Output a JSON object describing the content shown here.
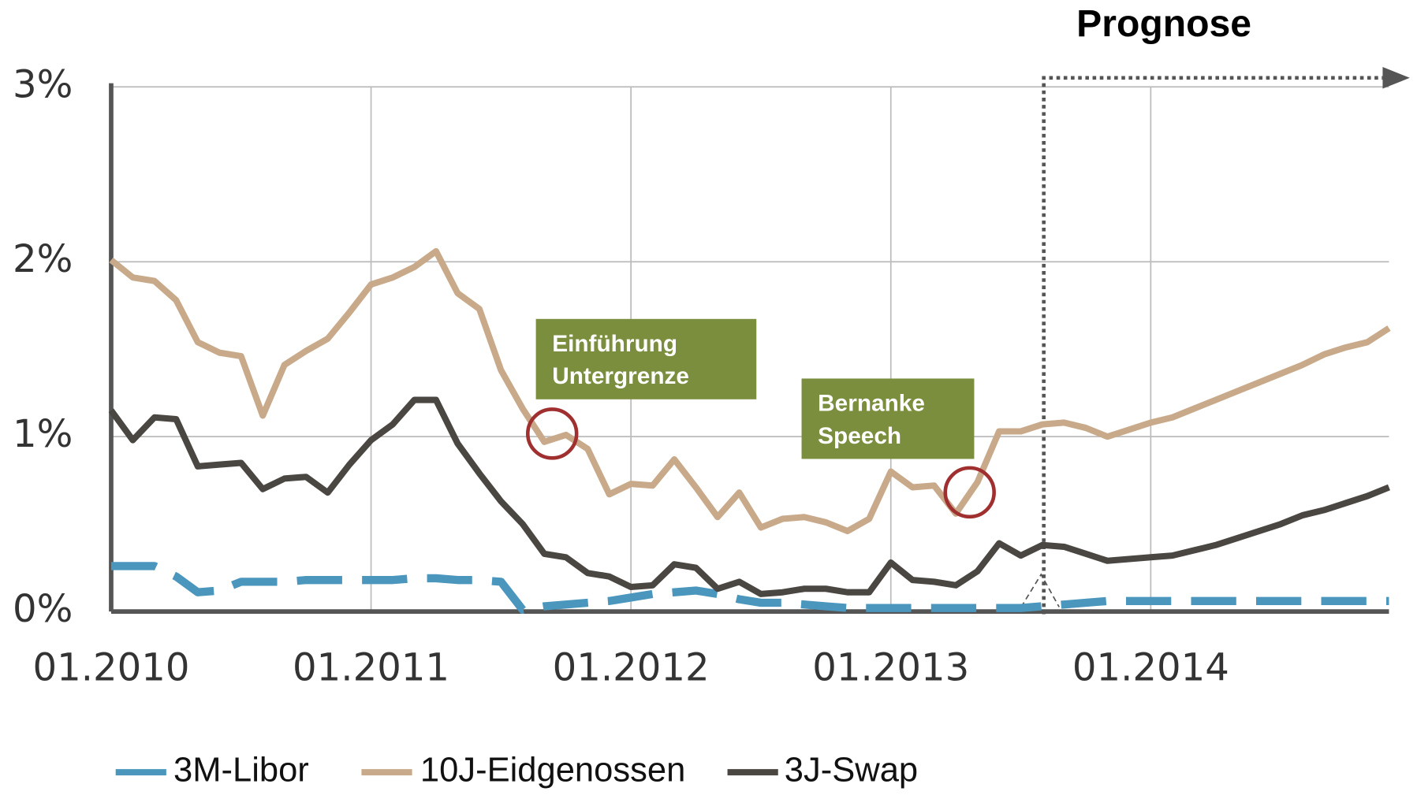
{
  "chart_data": {
    "type": "line",
    "x": [
      "01.2010",
      "02.2010",
      "03.2010",
      "04.2010",
      "05.2010",
      "06.2010",
      "07.2010",
      "08.2010",
      "09.2010",
      "10.2010",
      "11.2010",
      "12.2010",
      "01.2011",
      "02.2011",
      "03.2011",
      "04.2011",
      "05.2011",
      "06.2011",
      "07.2011",
      "08.2011",
      "09.2011",
      "10.2011",
      "11.2011",
      "12.2011",
      "01.2012",
      "02.2012",
      "03.2012",
      "04.2012",
      "05.2012",
      "06.2012",
      "07.2012",
      "08.2012",
      "09.2012",
      "10.2012",
      "11.2012",
      "12.2012",
      "01.2013",
      "02.2013",
      "03.2013",
      "04.2013",
      "05.2013",
      "06.2013",
      "07.2013",
      "08.2013",
      "09.2013",
      "10.2013",
      "11.2013",
      "12.2013",
      "01.2014",
      "02.2014",
      "03.2014",
      "04.2014",
      "05.2014",
      "06.2014",
      "07.2014",
      "08.2014",
      "09.2014",
      "10.2014",
      "11.2014",
      "12.2014"
    ],
    "series": [
      {
        "name": "3M-Libor",
        "color": "#4a96bd",
        "dashed": true,
        "values": [
          0.26,
          0.26,
          0.26,
          0.2,
          0.11,
          0.12,
          0.17,
          0.17,
          0.17,
          0.18,
          0.18,
          0.18,
          0.18,
          0.18,
          0.19,
          0.19,
          0.18,
          0.18,
          0.17,
          0.01,
          0.03,
          0.04,
          0.05,
          0.06,
          0.08,
          0.1,
          0.11,
          0.12,
          0.1,
          0.07,
          0.05,
          0.05,
          0.04,
          0.03,
          0.02,
          0.02,
          0.02,
          0.02,
          0.02,
          0.02,
          0.02,
          0.02,
          0.02,
          0.03,
          0.04,
          0.05,
          0.06,
          0.06,
          0.06,
          0.06,
          0.06,
          0.06,
          0.06,
          0.06,
          0.06,
          0.06,
          0.06,
          0.06,
          0.06,
          0.06
        ]
      },
      {
        "name": "10J-Eidgenossen",
        "color": "#c8a98a",
        "dashed": false,
        "values": [
          2.01,
          1.91,
          1.89,
          1.78,
          1.54,
          1.48,
          1.46,
          1.12,
          1.41,
          1.49,
          1.56,
          1.71,
          1.87,
          1.91,
          1.97,
          2.06,
          1.82,
          1.73,
          1.38,
          1.16,
          0.97,
          1.01,
          0.93,
          0.67,
          0.73,
          0.72,
          0.87,
          0.71,
          0.54,
          0.68,
          0.48,
          0.53,
          0.54,
          0.51,
          0.46,
          0.53,
          0.8,
          0.71,
          0.72,
          0.56,
          0.74,
          1.03,
          1.03,
          1.07,
          1.08,
          1.05,
          1.0,
          1.04,
          1.08,
          1.11,
          1.16,
          1.21,
          1.26,
          1.31,
          1.36,
          1.41,
          1.47,
          1.51,
          1.54,
          1.62
        ]
      },
      {
        "name": "3J-Swap",
        "color": "#4a4641",
        "dashed": false,
        "values": [
          1.15,
          0.98,
          1.11,
          1.1,
          0.83,
          0.84,
          0.85,
          0.7,
          0.76,
          0.77,
          0.68,
          0.84,
          0.98,
          1.07,
          1.21,
          1.21,
          0.96,
          0.79,
          0.63,
          0.5,
          0.33,
          0.31,
          0.22,
          0.2,
          0.14,
          0.15,
          0.27,
          0.25,
          0.13,
          0.17,
          0.1,
          0.11,
          0.13,
          0.13,
          0.11,
          0.11,
          0.28,
          0.18,
          0.17,
          0.15,
          0.23,
          0.39,
          0.32,
          0.38,
          0.37,
          0.33,
          0.29,
          0.3,
          0.31,
          0.32,
          0.35,
          0.38,
          0.42,
          0.46,
          0.5,
          0.55,
          0.58,
          0.62,
          0.66,
          0.71
        ]
      }
    ],
    "xlim": [
      "01.2010",
      "12.2014"
    ],
    "xticks": [
      "01.2010",
      "01.2011",
      "01.2012",
      "01.2013",
      "01.2014"
    ],
    "ylim": [
      0,
      3
    ],
    "yticks": [
      {
        "value": 0,
        "label": "0%"
      },
      {
        "value": 1,
        "label": "1%"
      },
      {
        "value": 2,
        "label": "2%"
      },
      {
        "value": 3,
        "label": "3%"
      }
    ],
    "grid": true,
    "annotations": [
      {
        "lines": [
          "Einführung",
          "Untergrenze"
        ]
      },
      {
        "lines": [
          "Bernanke",
          "Speech"
        ]
      },
      {
        "lines": [
          "Prognose"
        ]
      }
    ]
  }
}
